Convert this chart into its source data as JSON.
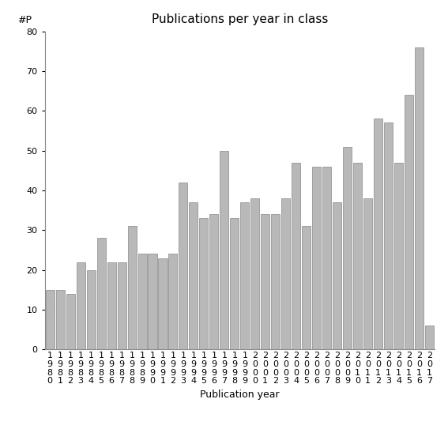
{
  "years": [
    "1980",
    "1981",
    "1982",
    "1983",
    "1984",
    "1985",
    "1986",
    "1987",
    "1988",
    "1989",
    "1990",
    "1991",
    "1992",
    "1993",
    "1994",
    "1995",
    "1996",
    "1997",
    "1998",
    "1999",
    "2000",
    "2001",
    "2002",
    "2003",
    "2004",
    "2005",
    "2006",
    "2007",
    "2008",
    "2009",
    "2010",
    "2011",
    "2012",
    "2013",
    "2014",
    "2015",
    "2016",
    "2017"
  ],
  "values": [
    15,
    15,
    14,
    22,
    20,
    28,
    22,
    22,
    31,
    24,
    24,
    23,
    24,
    42,
    37,
    33,
    34,
    50,
    33,
    37,
    38,
    34,
    34,
    38,
    47,
    31,
    46,
    46,
    37,
    51,
    47,
    38,
    58,
    57,
    47,
    64,
    76,
    6
  ],
  "bar_color": "#b8b8b8",
  "bar_edgecolor": "#888888",
  "title": "Publications per year in class",
  "xlabel": "Publication year",
  "ylabel": "#P",
  "ylim": [
    0,
    80
  ],
  "yticks": [
    0,
    10,
    20,
    30,
    40,
    50,
    60,
    70,
    80
  ],
  "background_color": "#ffffff",
  "title_fontsize": 11,
  "axis_fontsize": 9,
  "tick_fontsize": 8
}
